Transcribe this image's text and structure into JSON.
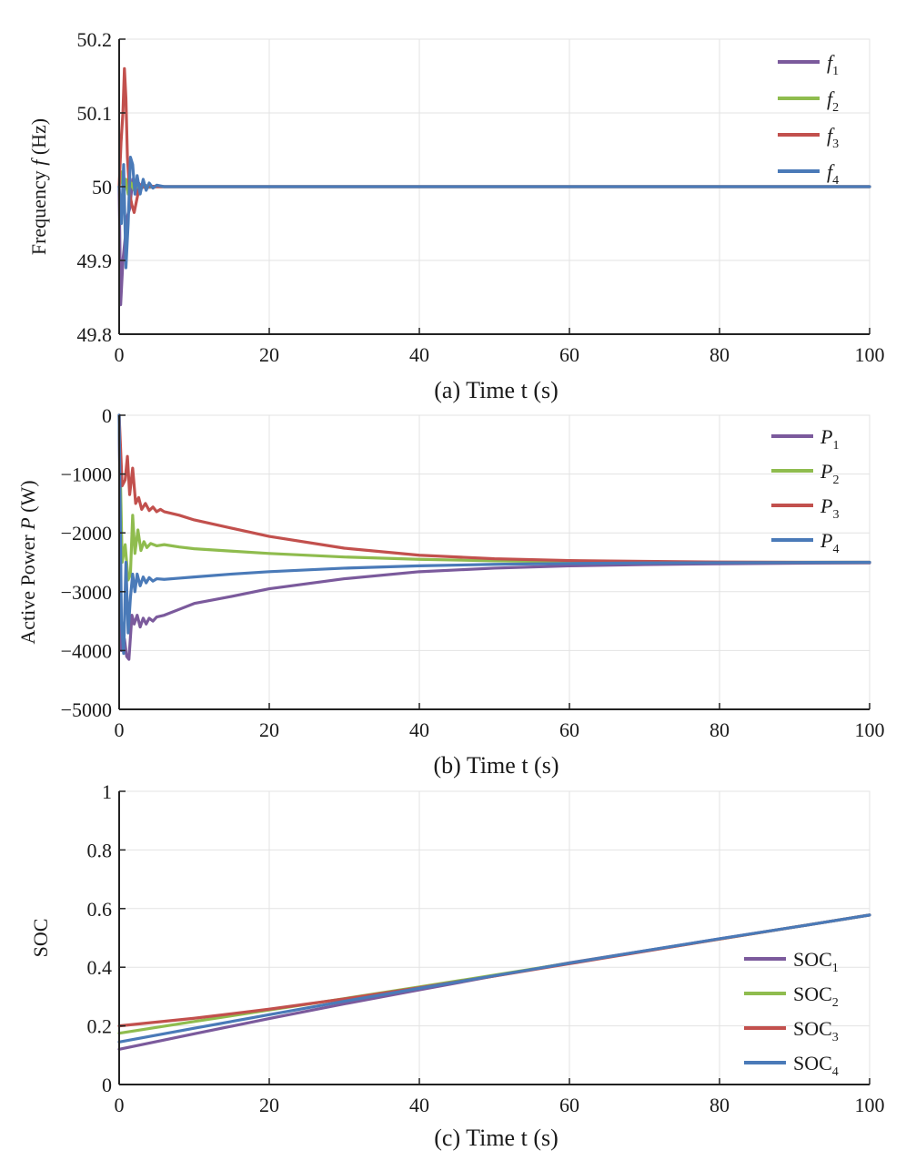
{
  "colors": {
    "s1": "#7b5a9c",
    "s2": "#8fbc4e",
    "s3": "#c2504d",
    "s4": "#4a7ab8",
    "grid": "#e3e3e3",
    "axis": "#222222"
  },
  "chart_data": [
    {
      "type": "line",
      "title": "",
      "xlabel": "(a) Time t (s)",
      "ylabel": {
        "pre": "Frequency ",
        "italic": "f",
        "post": " (Hz)"
      },
      "xlim": [
        0,
        100
      ],
      "ylim": [
        49.8,
        50.2
      ],
      "xticks": [
        "0",
        "20",
        "40",
        "60",
        "80",
        "100"
      ],
      "yticks": [
        "49.8",
        "49.9",
        "50",
        "50.1",
        "50.2"
      ],
      "grid": true,
      "legend_position": "top-right",
      "legend": [
        {
          "main": "f",
          "sub": "1",
          "italic": true
        },
        {
          "main": "f",
          "sub": "2",
          "italic": true
        },
        {
          "main": "f",
          "sub": "3",
          "italic": true
        },
        {
          "main": "f",
          "sub": "4",
          "italic": true
        }
      ],
      "series": [
        {
          "name": "f1",
          "x": [
            0,
            0.2,
            0.5,
            0.8,
            1.1,
            1.4,
            1.8,
            2.2,
            2.6,
            3,
            3.5,
            4,
            5,
            6,
            8,
            100
          ],
          "y": [
            50.0,
            49.84,
            49.9,
            49.93,
            49.96,
            49.97,
            50.01,
            49.99,
            50.005,
            49.998,
            50.002,
            49.999,
            50.0,
            50.0,
            50.0,
            50.0
          ]
        },
        {
          "name": "f2",
          "x": [
            0,
            0.3,
            0.6,
            0.9,
            1.2,
            1.6,
            2.0,
            2.5,
            3,
            3.5,
            4,
            5,
            100
          ],
          "y": [
            50.0,
            50.02,
            49.99,
            50.01,
            49.99,
            50.005,
            49.995,
            50.002,
            49.999,
            50.001,
            50.0,
            50.0,
            50.0
          ]
        },
        {
          "name": "f3",
          "x": [
            0,
            0.25,
            0.5,
            0.7,
            0.9,
            1.1,
            1.4,
            1.7,
            2.0,
            2.3,
            2.6,
            3,
            3.5,
            4,
            5,
            6,
            100
          ],
          "y": [
            50.0,
            50.06,
            50.1,
            50.16,
            50.12,
            50.04,
            49.99,
            49.975,
            49.965,
            49.98,
            49.995,
            50.003,
            49.998,
            50.001,
            50.0,
            50.0,
            50.0
          ]
        },
        {
          "name": "f4",
          "x": [
            0,
            0.3,
            0.6,
            0.9,
            1.2,
            1.5,
            1.8,
            2.1,
            2.4,
            2.8,
            3.2,
            3.6,
            4,
            4.5,
            5,
            6,
            100
          ],
          "y": [
            50.0,
            49.95,
            50.03,
            49.89,
            49.95,
            50.04,
            50.03,
            49.99,
            50.015,
            49.99,
            50.01,
            49.995,
            50.005,
            49.998,
            50.002,
            50.0,
            50.0
          ]
        }
      ]
    },
    {
      "type": "line",
      "title": "",
      "xlabel": "(b) Time t (s)",
      "ylabel": {
        "pre": "Active Power ",
        "italic": "P",
        "post": " (W)"
      },
      "xlim": [
        0,
        100
      ],
      "ylim": [
        -5000,
        0
      ],
      "xticks": [
        "0",
        "20",
        "40",
        "60",
        "80",
        "100"
      ],
      "yticks": [
        "−5000",
        "−4000",
        "−3000",
        "−2000",
        "−1000",
        "0"
      ],
      "grid": true,
      "legend_position": "top-right",
      "legend": [
        {
          "main": "P",
          "sub": "1",
          "italic": true
        },
        {
          "main": "P",
          "sub": "2",
          "italic": true
        },
        {
          "main": "P",
          "sub": "3",
          "italic": true
        },
        {
          "main": "P",
          "sub": "4",
          "italic": true
        }
      ],
      "series": [
        {
          "name": "P1",
          "x": [
            0,
            0.3,
            0.7,
            1.0,
            1.3,
            1.7,
            2.0,
            2.4,
            2.8,
            3.2,
            3.6,
            4.0,
            4.5,
            5,
            6,
            8,
            10,
            15,
            20,
            30,
            40,
            50,
            60,
            70,
            80,
            90,
            100
          ],
          "y": [
            0,
            -4000,
            -3800,
            -4100,
            -4150,
            -3400,
            -3550,
            -3400,
            -3600,
            -3450,
            -3550,
            -3450,
            -3500,
            -3430,
            -3400,
            -3300,
            -3200,
            -3080,
            -2950,
            -2780,
            -2660,
            -2600,
            -2560,
            -2540,
            -2525,
            -2515,
            -2510
          ]
        },
        {
          "name": "P2",
          "x": [
            0,
            0.4,
            0.8,
            1.2,
            1.5,
            1.8,
            2.1,
            2.5,
            2.9,
            3.3,
            3.7,
            4.2,
            5,
            6,
            8,
            10,
            15,
            20,
            30,
            40,
            50,
            60,
            70,
            80,
            90,
            100
          ],
          "y": [
            0,
            -2500,
            -2200,
            -2800,
            -2700,
            -1700,
            -2350,
            -1950,
            -2300,
            -2150,
            -2250,
            -2180,
            -2220,
            -2200,
            -2240,
            -2270,
            -2310,
            -2350,
            -2410,
            -2450,
            -2475,
            -2490,
            -2497,
            -2500,
            -2500,
            -2500
          ]
        },
        {
          "name": "P3",
          "x": [
            0,
            0.4,
            0.8,
            1.1,
            1.4,
            1.8,
            2.2,
            2.6,
            3.0,
            3.5,
            4.0,
            4.5,
            5,
            5.5,
            6,
            8,
            10,
            15,
            20,
            30,
            40,
            50,
            60,
            70,
            80,
            90,
            100
          ],
          "y": [
            0,
            -1200,
            -1100,
            -700,
            -1350,
            -900,
            -1500,
            -1400,
            -1600,
            -1500,
            -1620,
            -1560,
            -1640,
            -1600,
            -1640,
            -1700,
            -1780,
            -1920,
            -2060,
            -2260,
            -2380,
            -2440,
            -2470,
            -2485,
            -2495,
            -2500,
            -2500
          ]
        },
        {
          "name": "P4",
          "x": [
            0,
            0.3,
            0.6,
            0.9,
            1.2,
            1.5,
            1.8,
            2.1,
            2.4,
            2.8,
            3.2,
            3.6,
            4.0,
            4.5,
            5,
            6,
            8,
            10,
            15,
            20,
            30,
            40,
            50,
            60,
            70,
            80,
            90,
            100
          ],
          "y": [
            0,
            -3500,
            -4050,
            -2500,
            -3700,
            -3100,
            -2700,
            -3000,
            -2700,
            -2900,
            -2750,
            -2850,
            -2760,
            -2820,
            -2780,
            -2790,
            -2770,
            -2750,
            -2700,
            -2660,
            -2600,
            -2560,
            -2535,
            -2520,
            -2512,
            -2507,
            -2503,
            -2500
          ]
        }
      ]
    },
    {
      "type": "line",
      "title": "",
      "xlabel": "(c) Time t (s)",
      "ylabel": {
        "pre": "SOC",
        "italic": "",
        "post": ""
      },
      "xlim": [
        0,
        100
      ],
      "ylim": [
        0,
        1
      ],
      "xticks": [
        "0",
        "20",
        "40",
        "60",
        "80",
        "100"
      ],
      "yticks": [
        "0",
        "0.2",
        "0.4",
        "0.6",
        "0.8",
        "1"
      ],
      "grid": true,
      "legend_position": "bottom-right",
      "legend": [
        {
          "main": "SOC",
          "sub": "1",
          "italic": false
        },
        {
          "main": "SOC",
          "sub": "2",
          "italic": false
        },
        {
          "main": "SOC",
          "sub": "3",
          "italic": false
        },
        {
          "main": "SOC",
          "sub": "4",
          "italic": false
        }
      ],
      "series": [
        {
          "name": "SOC1",
          "x": [
            0,
            10,
            20,
            30,
            40,
            50,
            60,
            70,
            80,
            90,
            100
          ],
          "y": [
            0.12,
            0.173,
            0.225,
            0.275,
            0.323,
            0.37,
            0.415,
            0.456,
            0.497,
            0.537,
            0.578
          ]
        },
        {
          "name": "SOC2",
          "x": [
            0,
            10,
            20,
            30,
            40,
            50,
            60,
            70,
            80,
            90,
            100
          ],
          "y": [
            0.175,
            0.215,
            0.254,
            0.293,
            0.333,
            0.373,
            0.414,
            0.455,
            0.496,
            0.537,
            0.578
          ]
        },
        {
          "name": "SOC3",
          "x": [
            0,
            10,
            20,
            30,
            40,
            50,
            60,
            70,
            80,
            90,
            100
          ],
          "y": [
            0.2,
            0.226,
            0.257,
            0.292,
            0.33,
            0.37,
            0.412,
            0.454,
            0.496,
            0.537,
            0.578
          ]
        },
        {
          "name": "SOC4",
          "x": [
            0,
            10,
            20,
            30,
            40,
            50,
            60,
            70,
            80,
            90,
            100
          ],
          "y": [
            0.145,
            0.192,
            0.238,
            0.284,
            0.328,
            0.371,
            0.414,
            0.456,
            0.497,
            0.537,
            0.578
          ]
        }
      ]
    }
  ]
}
